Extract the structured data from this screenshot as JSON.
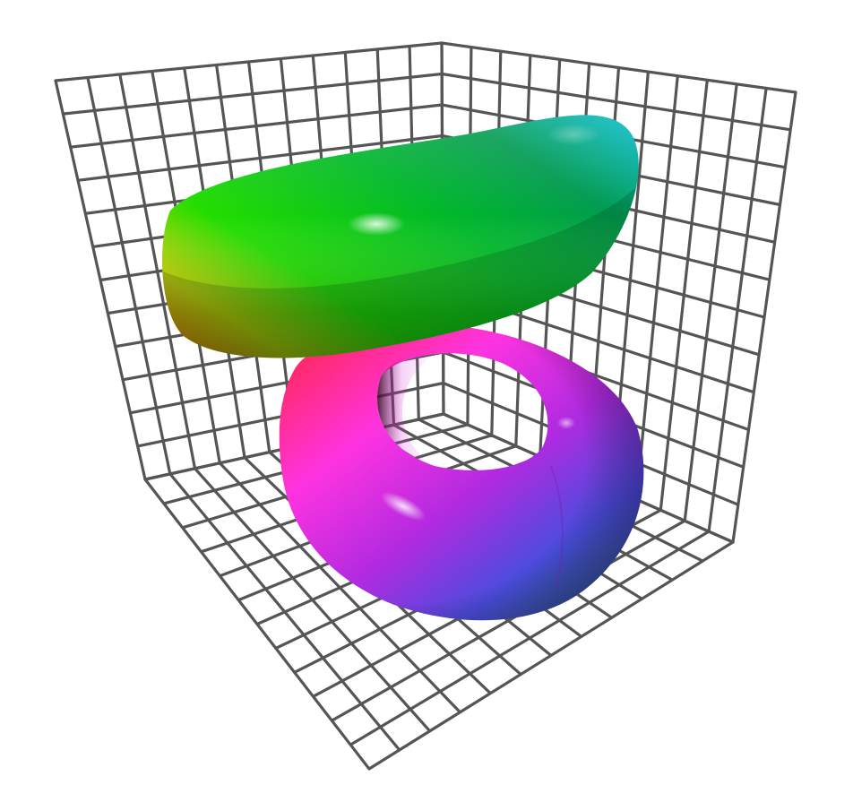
{
  "scene": {
    "background": "#ffffff",
    "grid": {
      "color": "#555555",
      "divisions": 12
    },
    "objects": [
      {
        "name": "upper-torus",
        "orientation": "horizontal",
        "colors": [
          "#ffff00",
          "#00ff00",
          "#008a3c",
          "#00b3b3"
        ]
      },
      {
        "name": "lower-torus",
        "orientation": "vertical",
        "colors": [
          "#ff2a70",
          "#ff33ff",
          "#9a22d6",
          "#3a55dd",
          "#2a6090"
        ]
      }
    ]
  }
}
